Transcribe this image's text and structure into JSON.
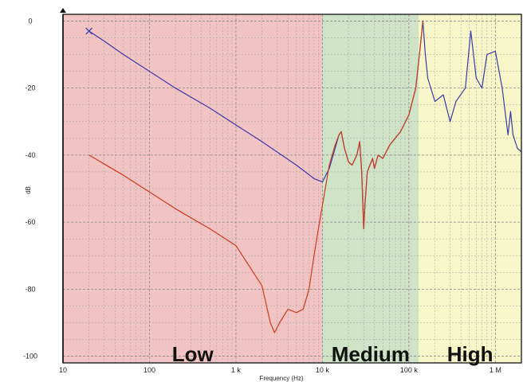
{
  "chart_data": {
    "type": "line",
    "xlabel": "Frequency (Hz)",
    "ylabel": "dB",
    "xscale": "log",
    "xlim": [
      10,
      2000000
    ],
    "ylim": [
      -102,
      2
    ],
    "grid": true,
    "x_ticks": [
      {
        "value": 10,
        "label": "10"
      },
      {
        "value": 100,
        "label": "100"
      },
      {
        "value": 1000,
        "label": "1 k"
      },
      {
        "value": 10000,
        "label": "10 k"
      },
      {
        "value": 100000,
        "label": "100 k"
      },
      {
        "value": 1000000,
        "label": "1 M"
      }
    ],
    "y_ticks": [
      {
        "value": 0,
        "label": "0"
      },
      {
        "value": -20,
        "label": "-20"
      },
      {
        "value": -40,
        "label": "-40"
      },
      {
        "value": -60,
        "label": "-60"
      },
      {
        "value": -80,
        "label": "-80"
      },
      {
        "value": -100,
        "label": "-100"
      }
    ],
    "bands": [
      {
        "label": "Low",
        "from": 10,
        "to": 10000,
        "color": "#f2c3c3"
      },
      {
        "label": "Medium",
        "from": 10000,
        "to": 130000,
        "color": "#cfe3c6"
      },
      {
        "label": "High",
        "from": 130000,
        "to": 2000000,
        "color": "#f6f6c8"
      }
    ],
    "series": [
      {
        "color": "#3a3aa8",
        "marker_start": "x",
        "points": [
          [
            20,
            -3
          ],
          [
            30,
            -6
          ],
          [
            50,
            -10
          ],
          [
            100,
            -15
          ],
          [
            200,
            -20
          ],
          [
            500,
            -26
          ],
          [
            1000,
            -31
          ],
          [
            2000,
            -36
          ],
          [
            5000,
            -43
          ],
          [
            8000,
            -47
          ],
          [
            10000,
            -48
          ],
          [
            12000,
            -44
          ],
          [
            14000,
            -38
          ],
          [
            15500,
            -34
          ],
          [
            16500,
            -33
          ],
          [
            18000,
            -38
          ],
          [
            20000,
            -42
          ],
          [
            22000,
            -43
          ],
          [
            25000,
            -40
          ],
          [
            27000,
            -36
          ],
          [
            28500,
            -45
          ],
          [
            30000,
            -62
          ],
          [
            31000,
            -55
          ],
          [
            33000,
            -45
          ],
          [
            38000,
            -41
          ],
          [
            40000,
            -44
          ],
          [
            44000,
            -40
          ],
          [
            50000,
            -41
          ],
          [
            60000,
            -37
          ],
          [
            80000,
            -33
          ],
          [
            100000,
            -28
          ],
          [
            120000,
            -20
          ],
          [
            135000,
            -8
          ],
          [
            145000,
            0
          ],
          [
            155000,
            -10
          ],
          [
            165000,
            -17
          ],
          [
            200000,
            -24
          ],
          [
            250000,
            -22
          ],
          [
            300000,
            -30
          ],
          [
            350000,
            -24
          ],
          [
            450000,
            -20
          ],
          [
            520000,
            -3
          ],
          [
            600000,
            -17
          ],
          [
            700000,
            -20
          ],
          [
            800000,
            -10
          ],
          [
            1000000,
            -9
          ],
          [
            1200000,
            -20
          ],
          [
            1400000,
            -34
          ],
          [
            1500000,
            -27
          ],
          [
            1600000,
            -34
          ],
          [
            1800000,
            -38
          ],
          [
            2000000,
            -39
          ]
        ]
      },
      {
        "color": "#cc3c1e",
        "marker_start": "none",
        "points": [
          [
            20,
            -40
          ],
          [
            50,
            -46
          ],
          [
            100,
            -51
          ],
          [
            200,
            -56
          ],
          [
            500,
            -62
          ],
          [
            1000,
            -67
          ],
          [
            2000,
            -79
          ],
          [
            2500,
            -90
          ],
          [
            2800,
            -93
          ],
          [
            3200,
            -90
          ],
          [
            4000,
            -86
          ],
          [
            5000,
            -87
          ],
          [
            6000,
            -86
          ],
          [
            7000,
            -80
          ],
          [
            8000,
            -70
          ],
          [
            9000,
            -62
          ],
          [
            10000,
            -55
          ],
          [
            12000,
            -43
          ],
          [
            14000,
            -37
          ],
          [
            15500,
            -34
          ],
          [
            16500,
            -33
          ],
          [
            18000,
            -38
          ],
          [
            20000,
            -42
          ],
          [
            22000,
            -43
          ],
          [
            25000,
            -40
          ],
          [
            27000,
            -36
          ],
          [
            28500,
            -45
          ],
          [
            30000,
            -62
          ],
          [
            31000,
            -55
          ],
          [
            33000,
            -45
          ],
          [
            38000,
            -41
          ],
          [
            40000,
            -44
          ],
          [
            44000,
            -40
          ],
          [
            50000,
            -41
          ],
          [
            60000,
            -37
          ],
          [
            80000,
            -33
          ],
          [
            100000,
            -28
          ],
          [
            120000,
            -20
          ],
          [
            135000,
            -8
          ],
          [
            145000,
            0
          ]
        ]
      }
    ]
  }
}
